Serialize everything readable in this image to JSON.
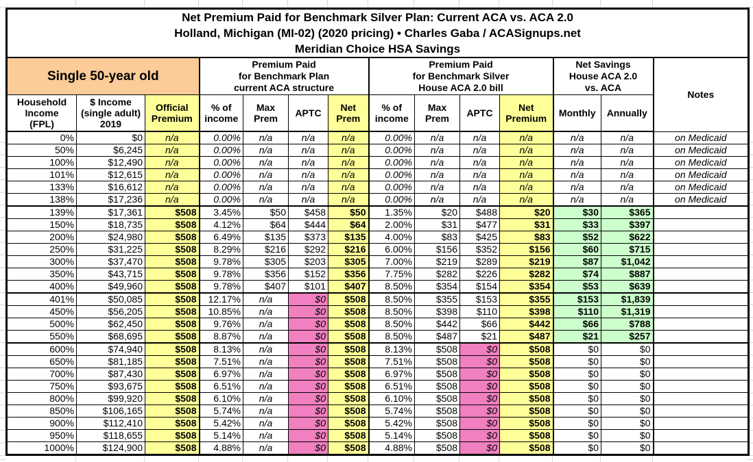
{
  "title": {
    "line1": "Net Premium Paid for Benchmark Silver Plan: Current ACA vs. ACA 2.0",
    "line2": "Holland, Michigan (MI-02) (2020 pricing) • Charles Gaba / ACASignups.net",
    "line3": "Meridian Choice HSA Savings"
  },
  "groups": {
    "subject": "Single 50-year old",
    "current_aca": "Premium Paid\nfor Benchmark Plan\ncurrent ACA structure",
    "house_aca": "Premium Paid\nfor Benchmark Silver\nHouse ACA 2.0 bill",
    "net_savings": "Net Savings\nHouse ACA 2.0\nvs. ACA",
    "notes": "Notes"
  },
  "columns": [
    "Household\nIncome\n(FPL)",
    "$ Income\n(single adult)\n2019",
    "Official\nPremium",
    "% of\nincome",
    "Max\nPrem",
    "APTC",
    "Net\nPrem",
    "% of\nincome",
    "Max\nPrem",
    "APTC",
    "Net\nPremium",
    "Monthly",
    "Annually"
  ],
  "colors": {
    "subject_header_bg": "#fbcb98",
    "highlight_yellow": "#ffff99",
    "savings_green": "#ccffcc",
    "zero_aptc_pink": "#f080c0",
    "border_black": "#000000",
    "gridline_gray": "#d4d4d4"
  },
  "rows": [
    {
      "fpl": "0%",
      "income": "$0",
      "official": "n/a",
      "aca_pct": "0.00%",
      "aca_max": "n/a",
      "aca_aptc": "n/a",
      "aca_net": "n/a",
      "h_pct": "0.00%",
      "h_max": "n/a",
      "h_aptc": "n/a",
      "h_net": "n/a",
      "monthly": "n/a",
      "annually": "n/a",
      "notes": "on Medicaid",
      "band": "medicaid",
      "group_start": false
    },
    {
      "fpl": "50%",
      "income": "$6,245",
      "official": "n/a",
      "aca_pct": "0.00%",
      "aca_max": "n/a",
      "aca_aptc": "n/a",
      "aca_net": "n/a",
      "h_pct": "0.00%",
      "h_max": "n/a",
      "h_aptc": "n/a",
      "h_net": "n/a",
      "monthly": "n/a",
      "annually": "n/a",
      "notes": "on Medicaid",
      "band": "medicaid",
      "group_start": false
    },
    {
      "fpl": "100%",
      "income": "$12,490",
      "official": "n/a",
      "aca_pct": "0.00%",
      "aca_max": "n/a",
      "aca_aptc": "n/a",
      "aca_net": "n/a",
      "h_pct": "0.00%",
      "h_max": "n/a",
      "h_aptc": "n/a",
      "h_net": "n/a",
      "monthly": "n/a",
      "annually": "n/a",
      "notes": "on Medicaid",
      "band": "medicaid",
      "group_start": false
    },
    {
      "fpl": "101%",
      "income": "$12,615",
      "official": "n/a",
      "aca_pct": "0.00%",
      "aca_max": "n/a",
      "aca_aptc": "n/a",
      "aca_net": "n/a",
      "h_pct": "0.00%",
      "h_max": "n/a",
      "h_aptc": "n/a",
      "h_net": "n/a",
      "monthly": "n/a",
      "annually": "n/a",
      "notes": "on Medicaid",
      "band": "medicaid",
      "group_start": false
    },
    {
      "fpl": "133%",
      "income": "$16,612",
      "official": "n/a",
      "aca_pct": "0.00%",
      "aca_max": "n/a",
      "aca_aptc": "n/a",
      "aca_net": "n/a",
      "h_pct": "0.00%",
      "h_max": "n/a",
      "h_aptc": "n/a",
      "h_net": "n/a",
      "monthly": "n/a",
      "annually": "n/a",
      "notes": "on Medicaid",
      "band": "medicaid",
      "group_start": false
    },
    {
      "fpl": "138%",
      "income": "$17,236",
      "official": "n/a",
      "aca_pct": "0.00%",
      "aca_max": "n/a",
      "aca_aptc": "n/a",
      "aca_net": "n/a",
      "h_pct": "0.00%",
      "h_max": "n/a",
      "h_aptc": "n/a",
      "h_net": "n/a",
      "monthly": "n/a",
      "annually": "n/a",
      "notes": "on Medicaid",
      "band": "medicaid",
      "group_start": false
    },
    {
      "fpl": "139%",
      "income": "$17,361",
      "official": "$508",
      "aca_pct": "3.45%",
      "aca_max": "$50",
      "aca_aptc": "$458",
      "aca_net": "$50",
      "h_pct": "1.35%",
      "h_max": "$20",
      "h_aptc": "$488",
      "h_net": "$20",
      "monthly": "$30",
      "annually": "$365",
      "notes": "",
      "band": "subsidy",
      "group_start": true
    },
    {
      "fpl": "150%",
      "income": "$18,735",
      "official": "$508",
      "aca_pct": "4.12%",
      "aca_max": "$64",
      "aca_aptc": "$444",
      "aca_net": "$64",
      "h_pct": "2.00%",
      "h_max": "$31",
      "h_aptc": "$477",
      "h_net": "$31",
      "monthly": "$33",
      "annually": "$397",
      "notes": "",
      "band": "subsidy",
      "group_start": false
    },
    {
      "fpl": "200%",
      "income": "$24,980",
      "official": "$508",
      "aca_pct": "6.49%",
      "aca_max": "$135",
      "aca_aptc": "$373",
      "aca_net": "$135",
      "h_pct": "4.00%",
      "h_max": "$83",
      "h_aptc": "$425",
      "h_net": "$83",
      "monthly": "$52",
      "annually": "$622",
      "notes": "",
      "band": "subsidy",
      "group_start": false
    },
    {
      "fpl": "250%",
      "income": "$31,225",
      "official": "$508",
      "aca_pct": "8.29%",
      "aca_max": "$216",
      "aca_aptc": "$292",
      "aca_net": "$216",
      "h_pct": "6.00%",
      "h_max": "$156",
      "h_aptc": "$352",
      "h_net": "$156",
      "monthly": "$60",
      "annually": "$715",
      "notes": "",
      "band": "subsidy",
      "group_start": false
    },
    {
      "fpl": "300%",
      "income": "$37,470",
      "official": "$508",
      "aca_pct": "9.78%",
      "aca_max": "$305",
      "aca_aptc": "$203",
      "aca_net": "$305",
      "h_pct": "7.00%",
      "h_max": "$219",
      "h_aptc": "$289",
      "h_net": "$219",
      "monthly": "$87",
      "annually": "$1,042",
      "notes": "",
      "band": "subsidy",
      "group_start": false
    },
    {
      "fpl": "350%",
      "income": "$43,715",
      "official": "$508",
      "aca_pct": "9.78%",
      "aca_max": "$356",
      "aca_aptc": "$152",
      "aca_net": "$356",
      "h_pct": "7.75%",
      "h_max": "$282",
      "h_aptc": "$226",
      "h_net": "$282",
      "monthly": "$74",
      "annually": "$887",
      "notes": "",
      "band": "subsidy",
      "group_start": false
    },
    {
      "fpl": "400%",
      "income": "$49,960",
      "official": "$508",
      "aca_pct": "9.78%",
      "aca_max": "$407",
      "aca_aptc": "$101",
      "aca_net": "$407",
      "h_pct": "8.50%",
      "h_max": "$354",
      "h_aptc": "$154",
      "h_net": "$354",
      "monthly": "$53",
      "annually": "$639",
      "notes": "",
      "band": "subsidy",
      "group_start": false
    },
    {
      "fpl": "401%",
      "income": "$50,085",
      "official": "$508",
      "aca_pct": "12.17%",
      "aca_max": "n/a",
      "aca_aptc": "$0",
      "aca_net": "$508",
      "h_pct": "8.50%",
      "h_max": "$355",
      "h_aptc": "$153",
      "h_net": "$355",
      "monthly": "$153",
      "annually": "$1,839",
      "notes": "",
      "band": "cliff",
      "group_start": true
    },
    {
      "fpl": "450%",
      "income": "$56,205",
      "official": "$508",
      "aca_pct": "10.85%",
      "aca_max": "n/a",
      "aca_aptc": "$0",
      "aca_net": "$508",
      "h_pct": "8.50%",
      "h_max": "$398",
      "h_aptc": "$110",
      "h_net": "$398",
      "monthly": "$110",
      "annually": "$1,319",
      "notes": "",
      "band": "cliff",
      "group_start": false
    },
    {
      "fpl": "500%",
      "income": "$62,450",
      "official": "$508",
      "aca_pct": "9.76%",
      "aca_max": "n/a",
      "aca_aptc": "$0",
      "aca_net": "$508",
      "h_pct": "8.50%",
      "h_max": "$442",
      "h_aptc": "$66",
      "h_net": "$442",
      "monthly": "$66",
      "annually": "$788",
      "notes": "",
      "band": "cliff",
      "group_start": false
    },
    {
      "fpl": "550%",
      "income": "$68,695",
      "official": "$508",
      "aca_pct": "8.87%",
      "aca_max": "n/a",
      "aca_aptc": "$0",
      "aca_net": "$508",
      "h_pct": "8.50%",
      "h_max": "$487",
      "h_aptc": "$21",
      "h_net": "$487",
      "monthly": "$21",
      "annually": "$257",
      "notes": "",
      "band": "cliff",
      "group_start": false
    },
    {
      "fpl": "600%",
      "income": "$74,940",
      "official": "$508",
      "aca_pct": "8.13%",
      "aca_max": "n/a",
      "aca_aptc": "$0",
      "aca_net": "$508",
      "h_pct": "8.13%",
      "h_max": "$508",
      "h_aptc": "$0",
      "h_net": "$508",
      "monthly": "$0",
      "annually": "$0",
      "notes": "",
      "band": "flat",
      "group_start": true
    },
    {
      "fpl": "650%",
      "income": "$81,185",
      "official": "$508",
      "aca_pct": "7.51%",
      "aca_max": "n/a",
      "aca_aptc": "$0",
      "aca_net": "$508",
      "h_pct": "7.51%",
      "h_max": "$508",
      "h_aptc": "$0",
      "h_net": "$508",
      "monthly": "$0",
      "annually": "$0",
      "notes": "",
      "band": "flat",
      "group_start": false
    },
    {
      "fpl": "700%",
      "income": "$87,430",
      "official": "$508",
      "aca_pct": "6.97%",
      "aca_max": "n/a",
      "aca_aptc": "$0",
      "aca_net": "$508",
      "h_pct": "6.97%",
      "h_max": "$508",
      "h_aptc": "$0",
      "h_net": "$508",
      "monthly": "$0",
      "annually": "$0",
      "notes": "",
      "band": "flat",
      "group_start": false
    },
    {
      "fpl": "750%",
      "income": "$93,675",
      "official": "$508",
      "aca_pct": "6.51%",
      "aca_max": "n/a",
      "aca_aptc": "$0",
      "aca_net": "$508",
      "h_pct": "6.51%",
      "h_max": "$508",
      "h_aptc": "$0",
      "h_net": "$508",
      "monthly": "$0",
      "annually": "$0",
      "notes": "",
      "band": "flat",
      "group_start": false
    },
    {
      "fpl": "800%",
      "income": "$99,920",
      "official": "$508",
      "aca_pct": "6.10%",
      "aca_max": "n/a",
      "aca_aptc": "$0",
      "aca_net": "$508",
      "h_pct": "6.10%",
      "h_max": "$508",
      "h_aptc": "$0",
      "h_net": "$508",
      "monthly": "$0",
      "annually": "$0",
      "notes": "",
      "band": "flat",
      "group_start": false
    },
    {
      "fpl": "850%",
      "income": "$106,165",
      "official": "$508",
      "aca_pct": "5.74%",
      "aca_max": "n/a",
      "aca_aptc": "$0",
      "aca_net": "$508",
      "h_pct": "5.74%",
      "h_max": "$508",
      "h_aptc": "$0",
      "h_net": "$508",
      "monthly": "$0",
      "annually": "$0",
      "notes": "",
      "band": "flat",
      "group_start": false
    },
    {
      "fpl": "900%",
      "income": "$112,410",
      "official": "$508",
      "aca_pct": "5.42%",
      "aca_max": "n/a",
      "aca_aptc": "$0",
      "aca_net": "$508",
      "h_pct": "5.42%",
      "h_max": "$508",
      "h_aptc": "$0",
      "h_net": "$508",
      "monthly": "$0",
      "annually": "$0",
      "notes": "",
      "band": "flat",
      "group_start": false
    },
    {
      "fpl": "950%",
      "income": "$118,655",
      "official": "$508",
      "aca_pct": "5.14%",
      "aca_max": "n/a",
      "aca_aptc": "$0",
      "aca_net": "$508",
      "h_pct": "5.14%",
      "h_max": "$508",
      "h_aptc": "$0",
      "h_net": "$508",
      "monthly": "$0",
      "annually": "$0",
      "notes": "",
      "band": "flat",
      "group_start": false
    },
    {
      "fpl": "1000%",
      "income": "$124,900",
      "official": "$508",
      "aca_pct": "4.88%",
      "aca_max": "n/a",
      "aca_aptc": "$0",
      "aca_net": "$508",
      "h_pct": "4.88%",
      "h_max": "$508",
      "h_aptc": "$0",
      "h_net": "$508",
      "monthly": "$0",
      "annually": "$0",
      "notes": "",
      "band": "flat",
      "group_start": false
    }
  ]
}
